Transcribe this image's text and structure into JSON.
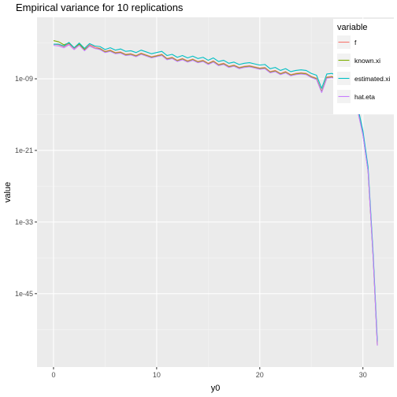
{
  "chart_data": {
    "type": "line",
    "title": "Empirical variance for 10 replications",
    "xlabel": "y0",
    "ylabel": "value",
    "y_scale": "log10",
    "xlim": [
      -1.6,
      33
    ],
    "ylim_log10": [
      -57.3,
      1.3
    ],
    "x_ticks": [
      0,
      10,
      20,
      30
    ],
    "y_ticks": [
      {
        "label": "1e-09",
        "log10": -9
      },
      {
        "label": "1e-21",
        "log10": -21
      },
      {
        "label": "1e-33",
        "log10": -33
      },
      {
        "label": "1e-45",
        "log10": -45
      }
    ],
    "grid": true,
    "legend": {
      "title": "variable",
      "position": "right"
    },
    "x": [
      0,
      0.5,
      1,
      1.5,
      2,
      2.5,
      3,
      3.5,
      4,
      4.5,
      5,
      5.5,
      6,
      6.5,
      7,
      7.5,
      8,
      8.5,
      9,
      9.5,
      10,
      10.5,
      11,
      11.5,
      12,
      12.5,
      13,
      13.5,
      14,
      14.5,
      15,
      15.5,
      16,
      16.5,
      17,
      17.5,
      18,
      18.5,
      19,
      19.5,
      20,
      20.5,
      21,
      21.5,
      22,
      22.5,
      23,
      23.5,
      24,
      24.5,
      25,
      25.5,
      26,
      26.5,
      27,
      27.5,
      28,
      28.5,
      29,
      29.5,
      30,
      30.5,
      31,
      31.4
    ],
    "series": [
      {
        "name": "f",
        "color": "#F8766D",
        "log10": [
          -3.2,
          -3.3,
          -3.6,
          -3.1,
          -3.9,
          -3.2,
          -4.1,
          -3.3,
          -3.7,
          -3.9,
          -4.4,
          -4.2,
          -4.6,
          -4.5,
          -4.9,
          -4.8,
          -5.1,
          -4.7,
          -5.0,
          -5.3,
          -5.1,
          -4.9,
          -5.6,
          -5.4,
          -5.9,
          -5.6,
          -6.0,
          -5.7,
          -6.1,
          -5.9,
          -6.4,
          -6.0,
          -6.6,
          -6.4,
          -6.9,
          -6.7,
          -7.1,
          -6.9,
          -6.8,
          -7.0,
          -7.2,
          -7.1,
          -7.8,
          -7.6,
          -8.1,
          -7.8,
          -8.3,
          -8.1,
          -8.0,
          -8.1,
          -8.6,
          -8.9,
          -11.1,
          -8.7,
          -8.6,
          -9.0,
          -9.4,
          -10.4,
          -11.6,
          -14.2,
          -18.2,
          -24.3,
          -39.0,
          -53.5
        ]
      },
      {
        "name": "known.xi",
        "color": "#7CAE00",
        "log10": [
          -2.6,
          -2.8,
          -3.3,
          -3.0,
          -3.8,
          -3.2,
          -4.1,
          -3.5,
          -3.9,
          -4.0,
          -4.5,
          -4.3,
          -4.7,
          -4.6,
          -5.0,
          -4.9,
          -5.2,
          -4.8,
          -5.1,
          -5.4,
          -5.2,
          -5.0,
          -5.7,
          -5.5,
          -6.0,
          -5.7,
          -6.1,
          -5.8,
          -6.2,
          -6.0,
          -6.5,
          -6.1,
          -6.7,
          -6.5,
          -7.0,
          -6.8,
          -7.2,
          -7.0,
          -6.9,
          -7.1,
          -7.3,
          -7.2,
          -7.9,
          -7.7,
          -8.2,
          -7.9,
          -8.4,
          -8.2,
          -8.1,
          -8.2,
          -8.7,
          -9.0,
          -11.2,
          -8.8,
          -8.7,
          -9.1,
          -9.5,
          -10.5,
          -11.7,
          -14.3,
          -18.3,
          -24.4,
          -39.1,
          -53.6
        ]
      },
      {
        "name": "estimated.xi",
        "color": "#00BFC4",
        "log10": [
          -3.2,
          -3.2,
          -3.5,
          -2.9,
          -3.8,
          -3.0,
          -3.9,
          -3.1,
          -3.5,
          -3.6,
          -4.1,
          -3.8,
          -4.2,
          -4.0,
          -4.4,
          -4.3,
          -4.6,
          -4.2,
          -4.5,
          -4.8,
          -4.6,
          -4.4,
          -5.1,
          -4.9,
          -5.4,
          -5.1,
          -5.5,
          -5.2,
          -5.6,
          -5.4,
          -5.9,
          -5.5,
          -6.1,
          -5.9,
          -6.4,
          -6.2,
          -6.6,
          -6.4,
          -6.3,
          -6.5,
          -6.7,
          -6.6,
          -7.3,
          -7.1,
          -7.6,
          -7.3,
          -7.8,
          -7.6,
          -7.5,
          -7.6,
          -8.1,
          -8.4,
          -10.6,
          -8.2,
          -8.1,
          -8.5,
          -8.9,
          -9.9,
          -11.1,
          -13.7,
          -17.7,
          -23.8,
          -38.5,
          -53.0
        ]
      },
      {
        "name": "hat.eta",
        "color": "#C77CFF",
        "log10": [
          -3.4,
          -3.5,
          -3.8,
          -3.3,
          -4.1,
          -3.4,
          -4.3,
          -3.5,
          -3.9,
          -4.1,
          -4.6,
          -4.4,
          -4.8,
          -4.7,
          -5.1,
          -5.0,
          -5.3,
          -4.9,
          -5.2,
          -5.5,
          -5.3,
          -5.1,
          -5.8,
          -5.6,
          -6.1,
          -5.8,
          -6.2,
          -5.9,
          -6.3,
          -6.1,
          -6.6,
          -6.2,
          -6.8,
          -6.6,
          -7.1,
          -6.9,
          -7.3,
          -7.1,
          -7.0,
          -7.2,
          -7.4,
          -7.3,
          -8.0,
          -7.8,
          -8.3,
          -8.0,
          -8.5,
          -8.3,
          -8.2,
          -8.3,
          -8.8,
          -9.1,
          -11.3,
          -8.9,
          -8.8,
          -9.2,
          -9.6,
          -10.6,
          -11.8,
          -14.4,
          -18.4,
          -24.5,
          -39.2,
          -53.7
        ]
      }
    ]
  }
}
